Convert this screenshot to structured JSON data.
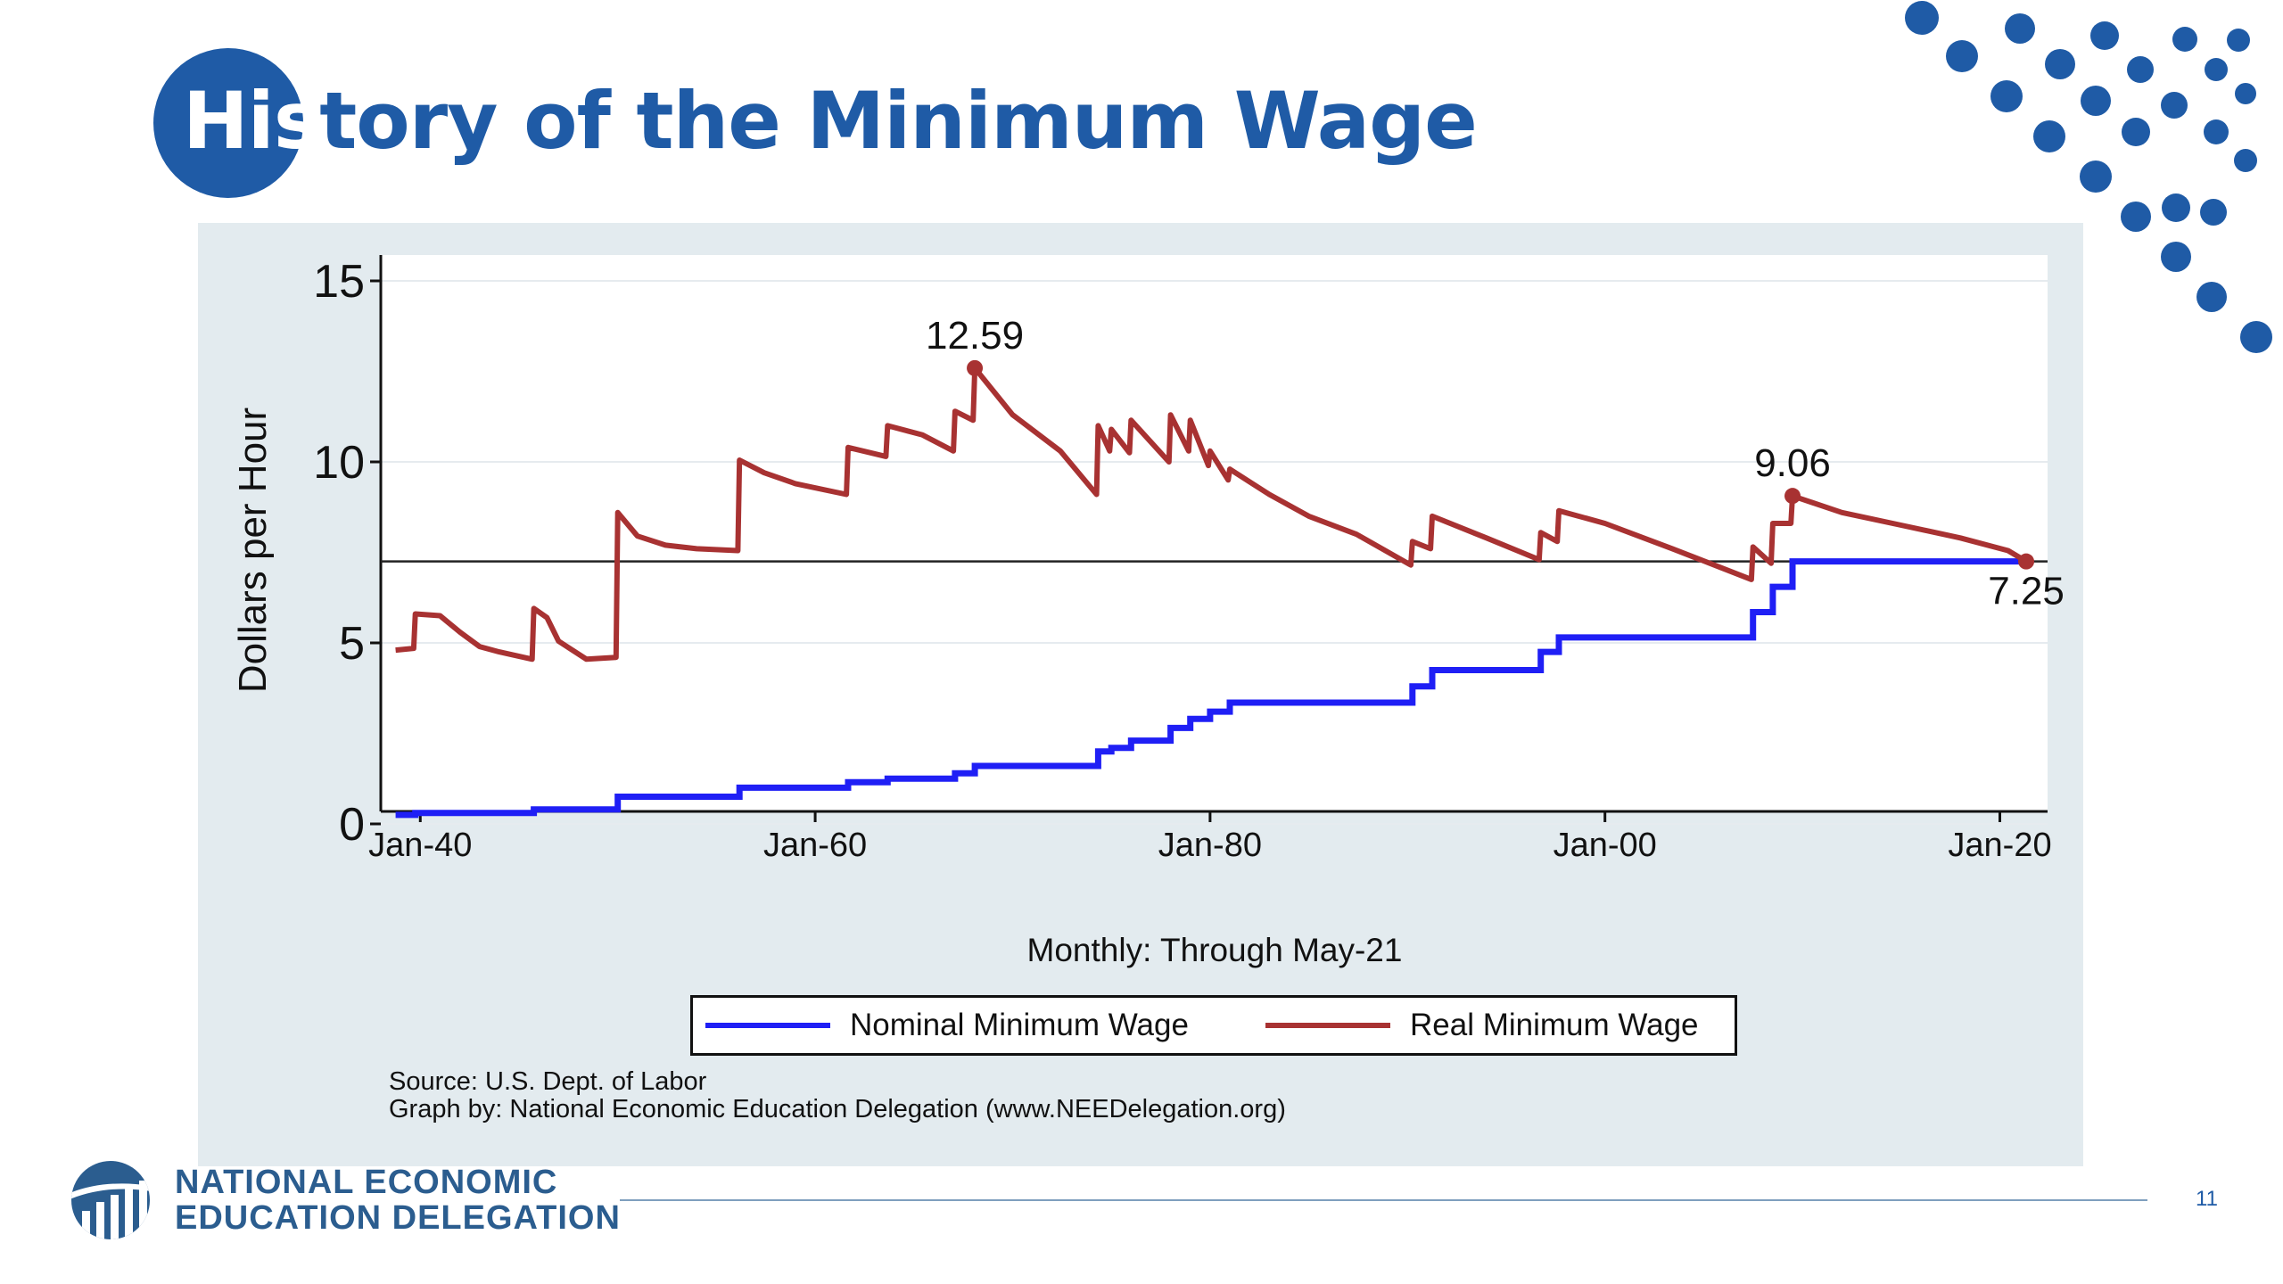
{
  "slide": {
    "title_first": "His",
    "title_rest": "tory of the Minimum Wage",
    "page_number": "11",
    "accent_color": "#1f5ba6"
  },
  "branding": {
    "org_line1": "NATIONAL ECONOMIC",
    "org_line2": "EDUCATION DELEGATION",
    "logo_icon": "chart-globe-icon"
  },
  "chart_data": {
    "type": "line",
    "title": "",
    "xlabel": "Monthly: Through May-21",
    "ylabel": "Dollars per Hour",
    "xlim": [
      "1938-01",
      "2022-06"
    ],
    "ylim": [
      0,
      15
    ],
    "xticks": [
      "Jan-40",
      "Jan-60",
      "Jan-80",
      "Jan-00",
      "Jan-20"
    ],
    "yticks": [
      "0",
      "5",
      "10",
      "15"
    ],
    "reference_line": 7.25,
    "grid": true,
    "legend_position": "bottom",
    "annotations": [
      {
        "text": "12.59",
        "date": "1968-02",
        "value": 12.59
      },
      {
        "text": "9.06",
        "date": "2009-07",
        "value": 9.06
      },
      {
        "text": "7.25",
        "date": "2021-05",
        "value": 7.25
      }
    ],
    "series": [
      {
        "name": "Nominal Minimum Wage",
        "color": "#1f1ff5",
        "steps": [
          [
            "1938-10",
            0.25
          ],
          [
            "1939-10",
            0.3
          ],
          [
            "1945-10",
            0.4
          ],
          [
            "1950-01",
            0.75
          ],
          [
            "1956-03",
            1.0
          ],
          [
            "1961-09",
            1.15
          ],
          [
            "1963-09",
            1.25
          ],
          [
            "1967-02",
            1.4
          ],
          [
            "1968-02",
            1.6
          ],
          [
            "1974-05",
            2.0
          ],
          [
            "1975-01",
            2.1
          ],
          [
            "1976-01",
            2.3
          ],
          [
            "1978-01",
            2.65
          ],
          [
            "1979-01",
            2.9
          ],
          [
            "1980-01",
            3.1
          ],
          [
            "1981-01",
            3.35
          ],
          [
            "1990-04",
            3.8
          ],
          [
            "1991-04",
            4.25
          ],
          [
            "1996-10",
            4.75
          ],
          [
            "1997-09",
            5.15
          ],
          [
            "2007-07",
            5.85
          ],
          [
            "2008-07",
            6.55
          ],
          [
            "2009-07",
            7.25
          ],
          [
            "2021-05",
            7.25
          ]
        ]
      },
      {
        "name": "Real Minimum Wage",
        "color": "#a83232",
        "points": [
          [
            "1938-10",
            4.8
          ],
          [
            "1939-09",
            4.85
          ],
          [
            "1939-10",
            5.8
          ],
          [
            "1941-01",
            5.75
          ],
          [
            "1942-01",
            5.3
          ],
          [
            "1943-01",
            4.9
          ],
          [
            "1944-01",
            4.75
          ],
          [
            "1945-09",
            4.55
          ],
          [
            "1945-10",
            5.95
          ],
          [
            "1946-06",
            5.7
          ],
          [
            "1947-01",
            5.05
          ],
          [
            "1948-06",
            4.55
          ],
          [
            "1949-12",
            4.6
          ],
          [
            "1950-01",
            8.6
          ],
          [
            "1951-01",
            7.95
          ],
          [
            "1952-06",
            7.7
          ],
          [
            "1954-01",
            7.6
          ],
          [
            "1956-02",
            7.55
          ],
          [
            "1956-03",
            10.05
          ],
          [
            "1957-06",
            9.7
          ],
          [
            "1959-01",
            9.4
          ],
          [
            "1961-08",
            9.1
          ],
          [
            "1961-09",
            10.4
          ],
          [
            "1963-08",
            10.15
          ],
          [
            "1963-09",
            11.0
          ],
          [
            "1965-06",
            10.75
          ],
          [
            "1967-01",
            10.3
          ],
          [
            "1967-02",
            11.4
          ],
          [
            "1968-01",
            11.15
          ],
          [
            "1968-02",
            12.59
          ],
          [
            "1970-01",
            11.3
          ],
          [
            "1972-06",
            10.3
          ],
          [
            "1974-04",
            9.1
          ],
          [
            "1974-05",
            11.0
          ],
          [
            "1974-12",
            10.3
          ],
          [
            "1975-01",
            10.9
          ],
          [
            "1975-12",
            10.25
          ],
          [
            "1976-01",
            11.15
          ],
          [
            "1977-12",
            10.0
          ],
          [
            "1978-01",
            11.3
          ],
          [
            "1978-12",
            10.3
          ],
          [
            "1979-01",
            11.15
          ],
          [
            "1979-12",
            9.9
          ],
          [
            "1980-01",
            10.3
          ],
          [
            "1980-12",
            9.5
          ],
          [
            "1981-01",
            9.8
          ],
          [
            "1983-01",
            9.1
          ],
          [
            "1985-01",
            8.5
          ],
          [
            "1987-06",
            8.0
          ],
          [
            "1990-03",
            7.15
          ],
          [
            "1990-04",
            7.8
          ],
          [
            "1991-03",
            7.6
          ],
          [
            "1991-04",
            8.5
          ],
          [
            "1994-01",
            7.9
          ],
          [
            "1996-09",
            7.3
          ],
          [
            "1996-10",
            8.05
          ],
          [
            "1997-08",
            7.8
          ],
          [
            "1997-09",
            8.65
          ],
          [
            "2000-01",
            8.3
          ],
          [
            "2003-06",
            7.6
          ],
          [
            "2007-06",
            6.75
          ],
          [
            "2007-07",
            7.65
          ],
          [
            "2008-06",
            7.2
          ],
          [
            "2008-07",
            8.3
          ],
          [
            "2009-06",
            8.3
          ],
          [
            "2009-07",
            9.06
          ],
          [
            "2012-01",
            8.6
          ],
          [
            "2015-01",
            8.25
          ],
          [
            "2018-01",
            7.9
          ],
          [
            "2020-06",
            7.55
          ],
          [
            "2021-05",
            7.25
          ]
        ]
      }
    ]
  },
  "source": {
    "line1": "Source: U.S. Dept. of Labor",
    "line2": "Graph by: National Economic Education Delegation (www.NEEDelegation.org)"
  }
}
